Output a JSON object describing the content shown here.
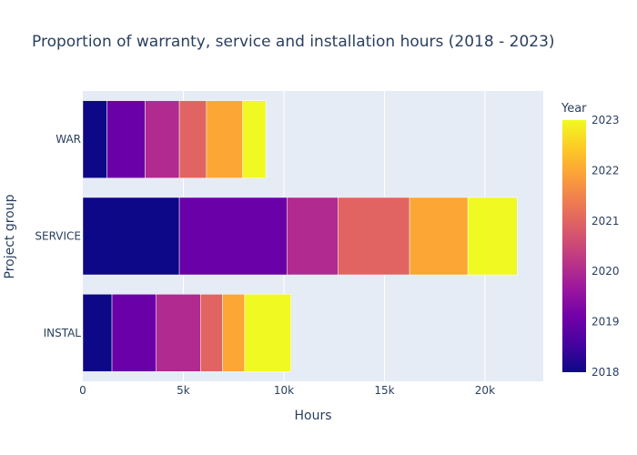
{
  "chart_data": {
    "type": "bar",
    "orientation": "horizontal",
    "stacked": true,
    "title": "Proportion of warranty, service and installation hours (2018 - 2023)",
    "xlabel": "Hours",
    "ylabel": "Project group",
    "xlim": [
      0,
      22900
    ],
    "x_ticks": [
      {
        "value": 0,
        "label": "0"
      },
      {
        "value": 5000,
        "label": "5k"
      },
      {
        "value": 10000,
        "label": "10k"
      },
      {
        "value": 15000,
        "label": "15k"
      },
      {
        "value": 20000,
        "label": "20k"
      }
    ],
    "categories": [
      "WAR",
      "SERVICE",
      "INSTAL"
    ],
    "grid": true,
    "plot_background": "#e5ecf6",
    "colorbar": {
      "title": "Year",
      "range": [
        2018,
        2023
      ],
      "ticks": [
        "2018",
        "2019",
        "2020",
        "2021",
        "2022",
        "2023"
      ],
      "colorscale": [
        "#0d0887",
        "#46039f",
        "#7201a8",
        "#9c179e",
        "#bd3786",
        "#d8576b",
        "#ed7953",
        "#fb9f3a",
        "#fdca26",
        "#f0f921"
      ]
    },
    "series": [
      {
        "year": 2018,
        "color": "#0d0887",
        "values": [
          1200,
          4800,
          1450
        ]
      },
      {
        "year": 2019,
        "color": "#6a00a8",
        "values": [
          1900,
          5350,
          2200
        ]
      },
      {
        "year": 2020,
        "color": "#b12a90",
        "values": [
          1700,
          2550,
          2200
        ]
      },
      {
        "year": 2021,
        "color": "#e16462",
        "values": [
          1350,
          3550,
          1100
        ]
      },
      {
        "year": 2022,
        "color": "#fca636",
        "values": [
          1800,
          2900,
          1100
        ]
      },
      {
        "year": 2023,
        "color": "#f0f921",
        "values": [
          1150,
          2450,
          2300
        ]
      }
    ]
  }
}
